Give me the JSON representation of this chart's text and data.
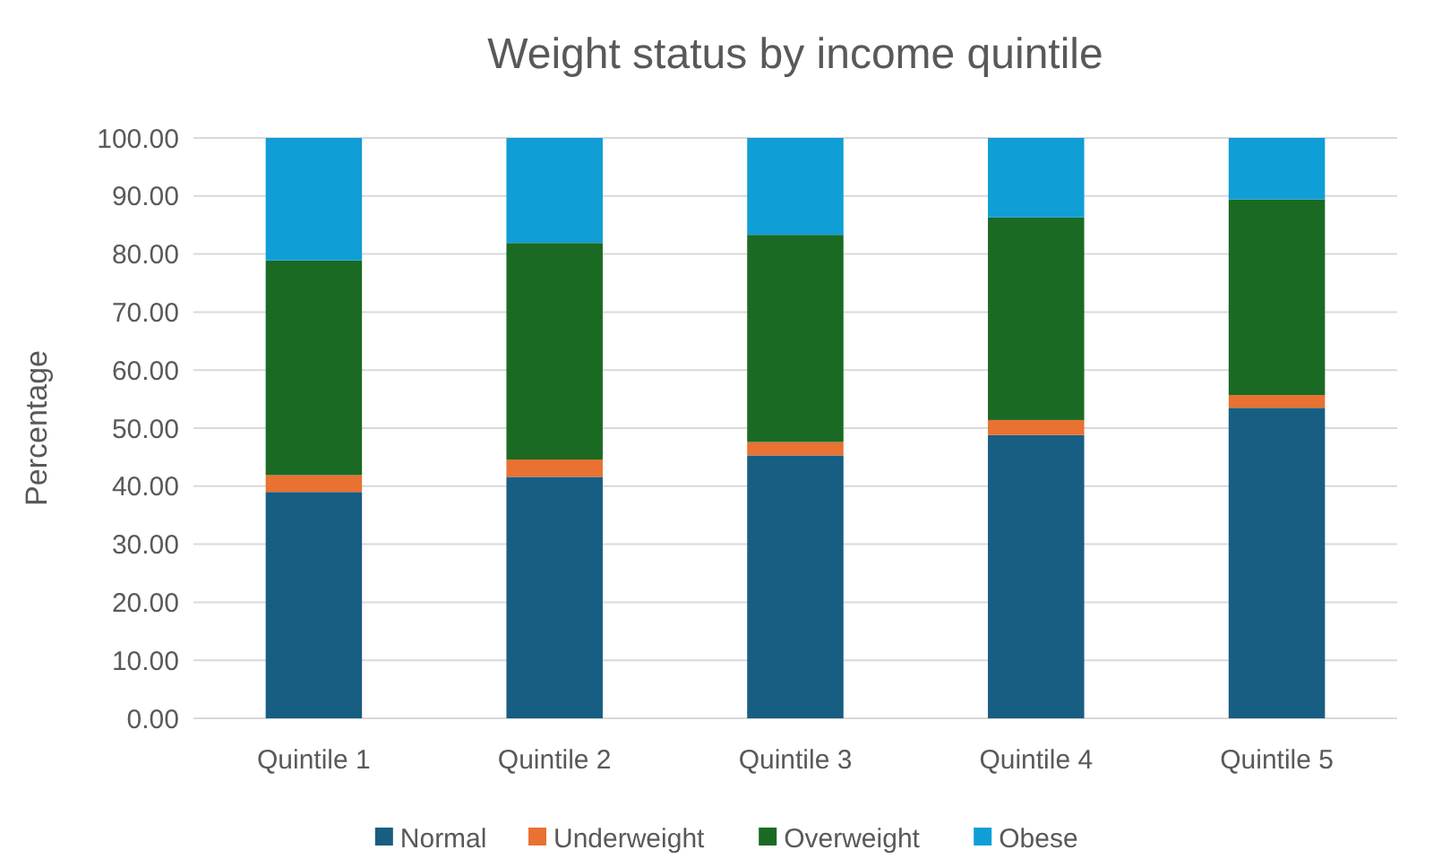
{
  "chart_data": {
    "type": "bar",
    "title": "Weight status by income quintile",
    "ylabel": "Percentage",
    "categories": [
      "Quintile 1",
      "Quintile 2",
      "Quintile 3",
      "Quintile 4",
      "Quintile 5"
    ],
    "stacked": true,
    "series": [
      {
        "name": "Normal",
        "color": "#175e82",
        "values": [
          39.0,
          41.6,
          45.3,
          48.8,
          53.5
        ]
      },
      {
        "name": "Underweight",
        "color": "#e97132",
        "values": [
          2.9,
          3.0,
          2.3,
          2.6,
          2.2
        ]
      },
      {
        "name": "Overweight",
        "color": "#1b6a24",
        "values": [
          37.0,
          37.3,
          35.7,
          34.9,
          33.7
        ]
      },
      {
        "name": "Obese",
        "color": "#0f9ed5",
        "values": [
          21.1,
          18.1,
          16.7,
          13.7,
          10.6
        ]
      }
    ],
    "ylim": [
      0,
      100
    ],
    "yticks": [
      {
        "value": 0,
        "label": "0.00"
      },
      {
        "value": 10,
        "label": "10.00"
      },
      {
        "value": 20,
        "label": "20.00"
      },
      {
        "value": 30,
        "label": "30.00"
      },
      {
        "value": 40,
        "label": "40.00"
      },
      {
        "value": 50,
        "label": "50.00"
      },
      {
        "value": 60,
        "label": "60.00"
      },
      {
        "value": 70,
        "label": "70.00"
      },
      {
        "value": 80,
        "label": "80.00"
      },
      {
        "value": 90,
        "label": "90.00"
      },
      {
        "value": 100,
        "label": "100.00"
      }
    ],
    "grid": "y",
    "legend": "bottom"
  }
}
